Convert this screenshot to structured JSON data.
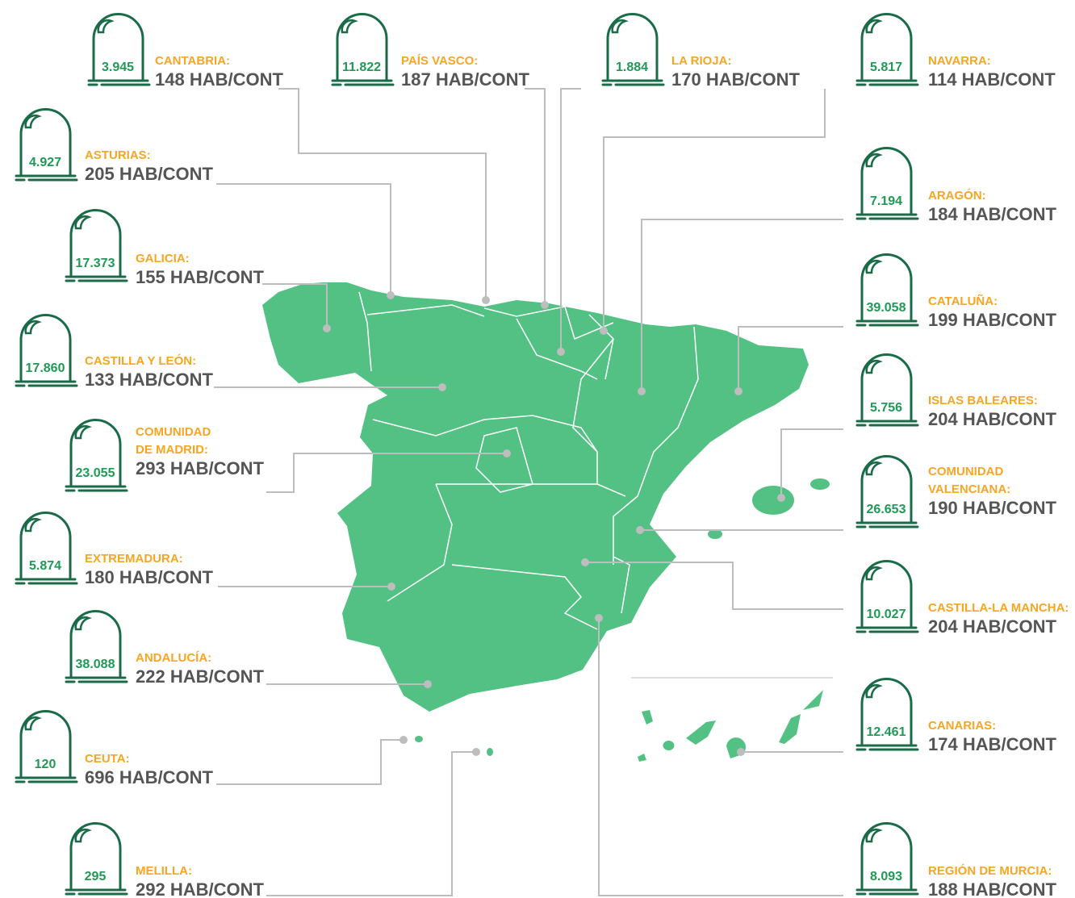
{
  "regions": [
    {
      "count": "3.945",
      "name": [
        "CANTABRIA:"
      ],
      "ratio": "148 HAB/CONT"
    },
    {
      "count": "11.822",
      "name": [
        "PAÍS VASCO:"
      ],
      "ratio": "187 HAB/CONT"
    },
    {
      "count": "1.884",
      "name": [
        "LA RIOJA:"
      ],
      "ratio": "170 HAB/CONT"
    },
    {
      "count": "5.817",
      "name": [
        "NAVARRA:"
      ],
      "ratio": "114 HAB/CONT"
    },
    {
      "count": "4.927",
      "name": [
        "ASTURIAS:"
      ],
      "ratio": "205 HAB/CONT"
    },
    {
      "count": "17.373",
      "name": [
        "GALICIA:"
      ],
      "ratio": "155 HAB/CONT"
    },
    {
      "count": "17.860",
      "name": [
        "CASTILLA Y LEÓN:"
      ],
      "ratio": "133 HAB/CONT"
    },
    {
      "count": "23.055",
      "name": [
        "COMUNIDAD",
        "DE MADRID:"
      ],
      "ratio": "293 HAB/CONT"
    },
    {
      "count": "5.874",
      "name": [
        "EXTREMADURA:"
      ],
      "ratio": "180 HAB/CONT"
    },
    {
      "count": "38.088",
      "name": [
        "ANDALUCÍA:"
      ],
      "ratio": "222 HAB/CONT"
    },
    {
      "count": "120",
      "name": [
        "CEUTA:"
      ],
      "ratio": "696 HAB/CONT"
    },
    {
      "count": "295",
      "name": [
        "MELILLA:"
      ],
      "ratio": "292 HAB/CONT"
    },
    {
      "count": "7.194",
      "name": [
        "ARAGÓN:"
      ],
      "ratio": "184 HAB/CONT"
    },
    {
      "count": "39.058",
      "name": [
        "CATALUÑA:"
      ],
      "ratio": "199 HAB/CONT"
    },
    {
      "count": "5.756",
      "name": [
        "ISLAS BALEARES:"
      ],
      "ratio": "204 HAB/CONT"
    },
    {
      "count": "26.653",
      "name": [
        "COMUNIDAD",
        "VALENCIANA:"
      ],
      "ratio": "190 HAB/CONT"
    },
    {
      "count": "10.027",
      "name": [
        "CASTILLA-LA MANCHA:"
      ],
      "ratio": "204 HAB/CONT"
    },
    {
      "count": "12.461",
      "name": [
        "CANARIAS:"
      ],
      "ratio": "174 HAB/CONT"
    },
    {
      "count": "8.093",
      "name": [
        "REGIÓN DE MURCIA:"
      ],
      "ratio": "188 HAB/CONT"
    }
  ]
}
